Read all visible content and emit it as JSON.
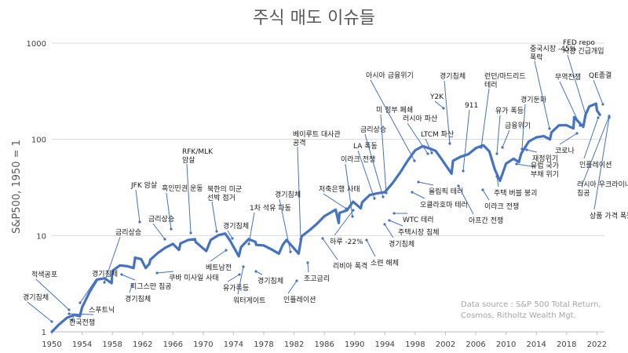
{
  "chart_data": {
    "type": "line",
    "title": "주식 매도 이슈들",
    "ylabel": "S&P500, 1950 = 1",
    "xlabel": "",
    "y_scale": "log",
    "ylim": [
      1,
      1000
    ],
    "xlim": [
      1950,
      2023
    ],
    "grid": true,
    "x_ticks": [
      "1950",
      "1954",
      "1958",
      "1962",
      "1966",
      "1970",
      "1974",
      "1978",
      "1982",
      "1986",
      "1990",
      "1994",
      "1998",
      "2002",
      "2006",
      "2010",
      "2014",
      "2018",
      "2022"
    ],
    "y_ticks": [
      "1",
      "10",
      "100",
      "1000"
    ],
    "source_text": [
      "Data source : S&P 500 Total Return,",
      "Cosmos, Ritholtz Wealth Mgt."
    ],
    "series": [
      {
        "name": "",
        "color": "#4472c4",
        "x": [
          1950,
          1951,
          1952,
          1953,
          1953.7,
          1954,
          1955,
          1955.8,
          1956,
          1957,
          1957.9,
          1958,
          1959,
          1960,
          1960.8,
          1961,
          1961.8,
          1962.4,
          1962.9,
          1963,
          1964,
          1965,
          1966,
          1966.8,
          1967,
          1968,
          1968.9,
          1969,
          1970.4,
          1971,
          1972,
          1972.9,
          1973.5,
          1974.7,
          1975,
          1976,
          1976.9,
          1977,
          1978,
          1979,
          1980,
          1980.5,
          1981,
          1982.6,
          1983,
          1984,
          1985,
          1986,
          1987.5,
          1987.9,
          1988,
          1989,
          1989.8,
          1990.8,
          1991,
          1992,
          1993,
          1994,
          1995,
          1996,
          1997,
          1998,
          1999,
          2000,
          2000.7,
          2001.5,
          2002.8,
          2003,
          2004,
          2005,
          2006,
          2007,
          2007.8,
          2008.5,
          2009.2,
          2010,
          2011,
          2011.7,
          2012,
          2013,
          2014,
          2015,
          2015.8,
          2016,
          2017,
          2018,
          2018.9,
          2019,
          2020.2,
          2020.5,
          2021,
          2021.9,
          2022,
          2022.4
        ],
        "values": [
          1.0,
          1.2,
          1.4,
          1.5,
          1.45,
          1.8,
          2.6,
          3.3,
          3.5,
          3.6,
          3.2,
          4.3,
          4.9,
          4.8,
          4.6,
          5.9,
          5.7,
          4.6,
          5.1,
          5.6,
          6.6,
          7.5,
          8.2,
          7.1,
          8.3,
          9.0,
          9.2,
          8.6,
          6.9,
          9.0,
          10.1,
          10.5,
          9.0,
          6.1,
          7.6,
          9.2,
          8.6,
          8.0,
          7.9,
          7.2,
          6.5,
          8.0,
          9.0,
          6.5,
          9.8,
          11.3,
          13.2,
          15.9,
          18.6,
          13.5,
          17.2,
          18.3,
          22.5,
          19.2,
          22.2,
          26.4,
          27.5,
          28.3,
          35.0,
          45.0,
          60.0,
          77.0,
          85.0,
          80.0,
          76.0,
          62.0,
          44.0,
          60.0,
          66.0,
          70.0,
          81.0,
          87.0,
          75.0,
          49.0,
          37.0,
          56.0,
          63.0,
          58.0,
          71.0,
          95.0,
          105.0,
          108.0,
          100.0,
          118.0,
          140.0,
          140.0,
          130.0,
          170.0,
          135.0,
          180.0,
          220.0,
          235.0,
          200.0,
          180.0
        ]
      }
    ],
    "annotations": [
      "경기침체",
      "적색공포",
      "경기침체",
      "금리상승",
      "스푸트닉",
      "한국전쟁",
      "피그스만 침공",
      "JFK 암살",
      "금리상승",
      "흑인민권 운동",
      "RFK/MLK 암살",
      "경기침체",
      "쿠바 미사일 사태",
      "베트남전",
      "북한의 미군 선박 점거",
      "경기침체",
      "1차 석유 파동",
      "유가폭등",
      "워터게이트",
      "경기침체",
      "경기침체",
      "베이루트 대사관 공격",
      "인플레이션",
      "조고금리",
      "리비아 폭격",
      "이라크 전쟁",
      "저축은행 사태",
      "하루 -22%",
      "LA 폭동",
      "금리상승",
      "미 정부 폐쇄",
      "소련 해체",
      "주택시장 침체",
      "경기침체",
      "WTC 테러",
      "아시아 금융위기",
      "러시아 파산",
      "LTCM 파산",
      "올림픽 테러",
      "오클라호마 테러",
      "경기침체",
      "Y2K",
      "911",
      "아프간 전쟁",
      "런던/마드리드 테러",
      "유가 폭등",
      "금융위기",
      "이라크 전쟁",
      "주택 버블 붕괴",
      "경기둔화",
      "유럽 국가 부채 위기",
      "중국시장 -45% 폭락",
      "재정위기",
      "무역전쟁",
      "FED repo 시장 긴급개입",
      "코로나",
      "QE종결",
      "인플레이션",
      "러시아 우크라이나 침공",
      "상품 가격 폭등"
    ]
  }
}
